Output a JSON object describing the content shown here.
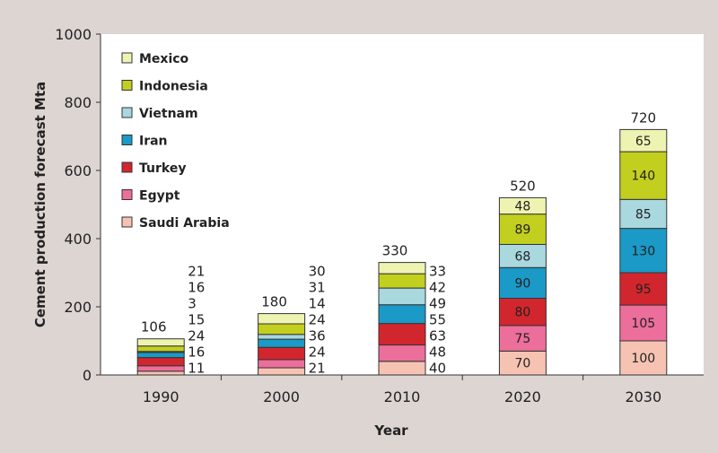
{
  "chart_data": {
    "type": "bar",
    "stacked": true,
    "title": "",
    "xlabel": "Year",
    "ylabel": "Cement production forecast Mta",
    "ylim": [
      0,
      1000
    ],
    "yticks": [
      0,
      200,
      400,
      600,
      800,
      1000
    ],
    "categories": [
      "1990",
      "2000",
      "2010",
      "2020",
      "2030"
    ],
    "totals": [
      106,
      180,
      330,
      520,
      720
    ],
    "legend_position": "top-left",
    "series": [
      {
        "name": "Saudi Arabia",
        "color": "#f6c3b3",
        "values": [
          11,
          21,
          40,
          70,
          100
        ]
      },
      {
        "name": "Egypt",
        "color": "#ec6e9a",
        "values": [
          16,
          24,
          48,
          75,
          105
        ]
      },
      {
        "name": "Turkey",
        "color": "#d1262e",
        "values": [
          24,
          36,
          63,
          80,
          95
        ]
      },
      {
        "name": "Iran",
        "color": "#1b99c7",
        "values": [
          15,
          24,
          55,
          90,
          130
        ]
      },
      {
        "name": "Vietnam",
        "color": "#a9d8df",
        "values": [
          3,
          14,
          49,
          68,
          85
        ]
      },
      {
        "name": "Indonesia",
        "color": "#c3cf1f",
        "values": [
          16,
          31,
          42,
          89,
          140
        ]
      },
      {
        "name": "Mexico",
        "color": "#eef3b1",
        "values": [
          21,
          30,
          33,
          48,
          65
        ]
      }
    ]
  }
}
